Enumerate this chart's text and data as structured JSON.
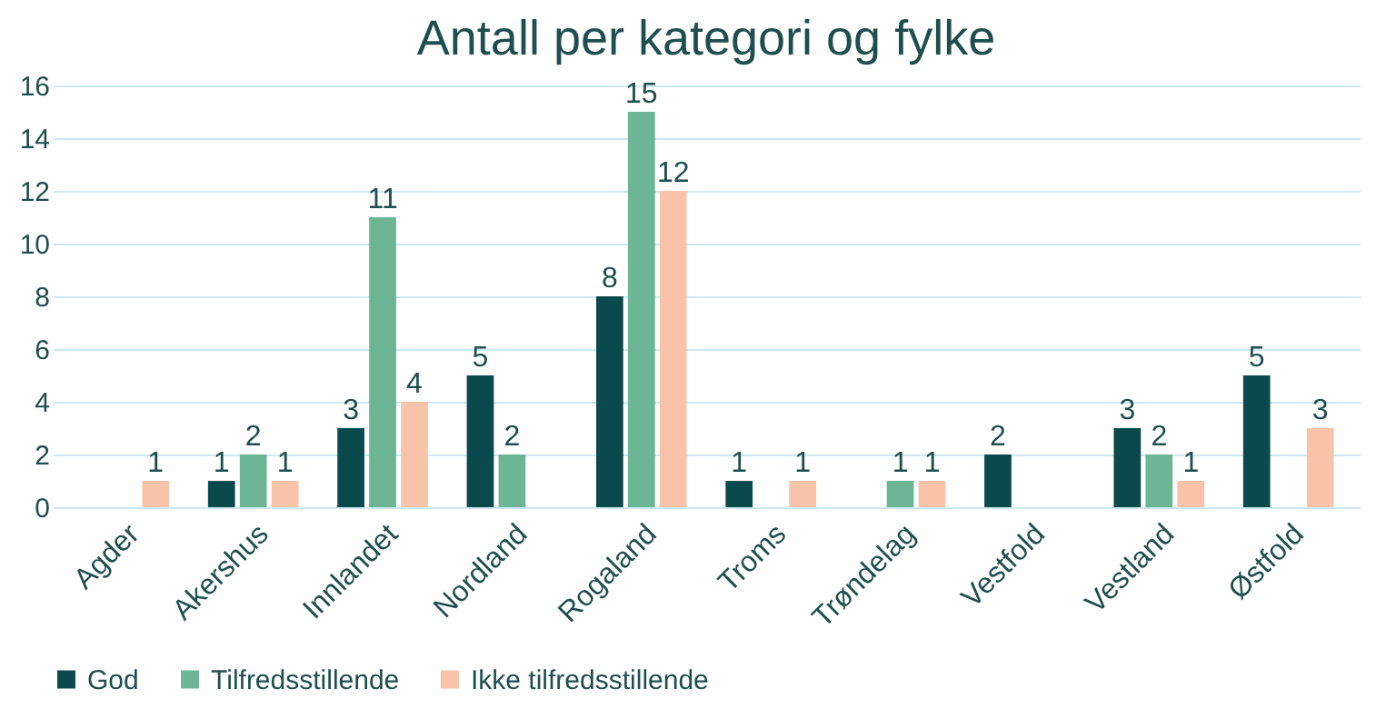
{
  "chart_data": {
    "type": "bar",
    "title": "Antall per kategori og fylke",
    "categories": [
      "Agder",
      "Akershus",
      "Innlandet",
      "Nordland",
      "Rogaland",
      "Troms",
      "Trøndelag",
      "Vestfold",
      "Vestland",
      "Østfold"
    ],
    "series": [
      {
        "name": "God",
        "color": "#0b4a4c",
        "values": [
          null,
          1,
          3,
          5,
          8,
          1,
          null,
          2,
          3,
          5
        ]
      },
      {
        "name": "Tilfredsstillende",
        "color": "#6cb595",
        "values": [
          null,
          2,
          11,
          2,
          15,
          null,
          1,
          null,
          2,
          null
        ]
      },
      {
        "name": "Ikke tilfredsstillende",
        "color": "#f8c3a8",
        "values": [
          1,
          1,
          4,
          null,
          12,
          1,
          1,
          null,
          1,
          3
        ]
      }
    ],
    "ylim": [
      0,
      16
    ],
    "yticks": [
      0,
      2,
      4,
      6,
      8,
      10,
      12,
      14,
      16
    ],
    "grid": "y",
    "legend": "bottom",
    "data_labels": true
  }
}
